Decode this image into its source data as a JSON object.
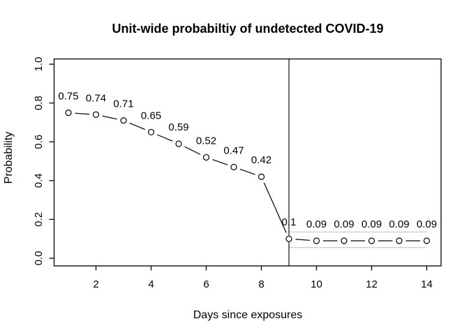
{
  "figure": {
    "background": "#ffffff",
    "text_color": "#000000"
  },
  "chart_data": {
    "type": "line",
    "title": "Unit-wide probabiltiy of undetected COVID-19",
    "xlabel": "Days since exposures",
    "ylabel": "Probability",
    "x": [
      1,
      2,
      3,
      4,
      5,
      6,
      7,
      8,
      9,
      10,
      11,
      12,
      13,
      14
    ],
    "values": [
      0.75,
      0.74,
      0.71,
      0.65,
      0.59,
      0.52,
      0.47,
      0.42,
      0.1,
      0.09,
      0.09,
      0.09,
      0.09,
      0.09
    ],
    "point_labels": [
      "0.75",
      "0.74",
      "0.71",
      "0.65",
      "0.59",
      "0.52",
      "0.47",
      "0.42",
      "0.1",
      "0.09",
      "0.09",
      "0.09",
      "0.09",
      "0.09"
    ],
    "x_ticks": [
      2,
      4,
      6,
      8,
      10,
      12,
      14
    ],
    "y_ticks": [
      "0.0",
      "0.2",
      "0.4",
      "0.6",
      "0.8",
      "1.0"
    ],
    "xlim": [
      1,
      14
    ],
    "ylim": [
      0,
      1
    ],
    "grid": false,
    "marker": "open-circle",
    "line_color": "#000000",
    "vline_x": 9,
    "confidence_band": {
      "x_start": 9,
      "x_end": 14,
      "upper": 0.135,
      "lower": 0.055,
      "color": "#c6c6c6"
    }
  }
}
